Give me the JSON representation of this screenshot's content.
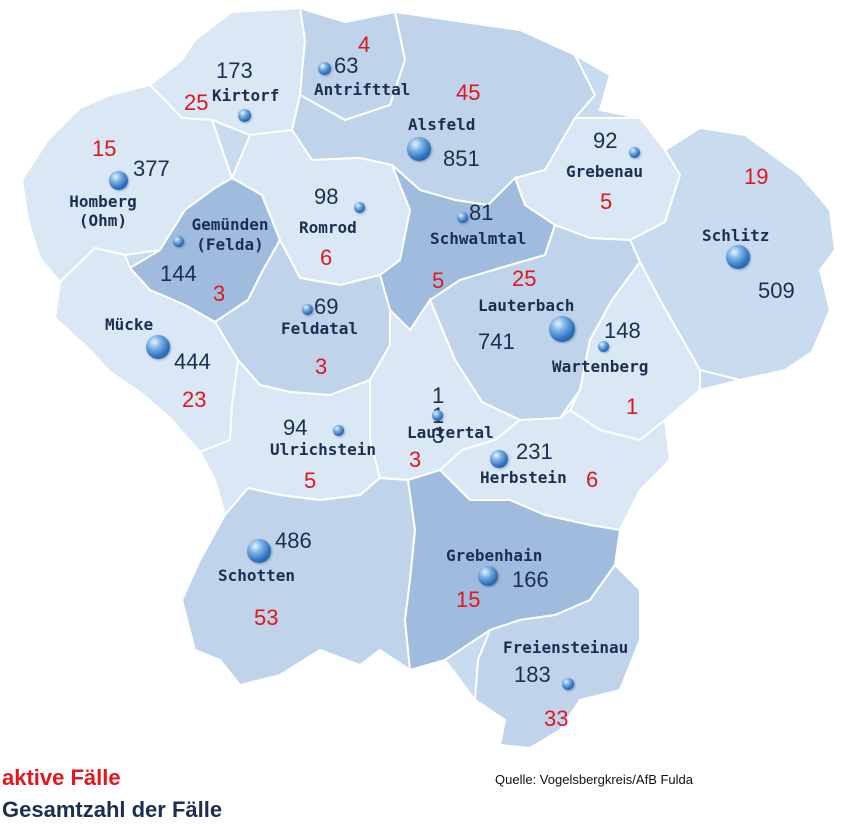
{
  "colors": {
    "active": "#e3161b",
    "total": "#1c2f50",
    "region_light": "#dae7f4",
    "region_mid": "#bfd3ea",
    "region_dark": "#9fbcdf",
    "border": "#ffffff"
  },
  "legend": {
    "active_label": "aktive Fälle",
    "total_label": "Gesamtzahl der Fälle"
  },
  "source": "Quelle: Vogelsbergkreis/AfB Fulda",
  "municipalities": [
    {
      "name": "Kirtorf",
      "total": "173",
      "active": "25"
    },
    {
      "name": "Antrifttal",
      "total": "63",
      "active": "4"
    },
    {
      "name": "Alsfeld",
      "total": "851",
      "active": "45"
    },
    {
      "name": "Grebenau",
      "total": "92",
      "active": "5"
    },
    {
      "name": "Schlitz",
      "total": "509",
      "active": "19"
    },
    {
      "name": "Homberg (Ohm)",
      "total": "377",
      "active": "15"
    },
    {
      "name": "Gemünden (Felda)",
      "total": "144",
      "active": "3"
    },
    {
      "name": "Romrod",
      "total": "98",
      "active": "6"
    },
    {
      "name": "Schwalmtal",
      "total": "81",
      "active": "5"
    },
    {
      "name": "Lauterbach",
      "total": "741",
      "active": "25"
    },
    {
      "name": "Wartenberg",
      "total": "148",
      "active": "1"
    },
    {
      "name": "Mücke",
      "total": "444",
      "active": "23"
    },
    {
      "name": "Feldatal",
      "total": "69",
      "active": "3"
    },
    {
      "name": "Lautertal",
      "total": "113",
      "active": "3"
    },
    {
      "name": "Ulrichstein",
      "total": "94",
      "active": "5"
    },
    {
      "name": "Herbstein",
      "total": "231",
      "active": "6"
    },
    {
      "name": "Schotten",
      "total": "486",
      "active": "53"
    },
    {
      "name": "Grebenhain",
      "total": "166",
      "active": "15"
    },
    {
      "name": "Freiensteinau",
      "total": "183",
      "active": "33"
    }
  ]
}
